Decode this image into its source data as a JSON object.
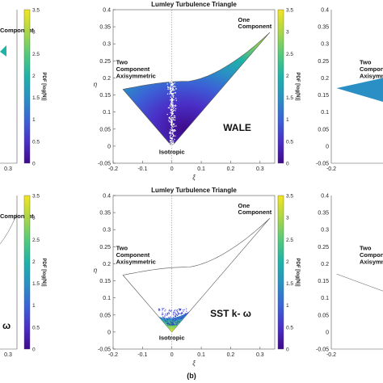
{
  "caption": "(b)",
  "colorbar_label": "PDF [log(N)]",
  "colormap": [
    "#3e0a8a",
    "#4a2fc7",
    "#3b62d6",
    "#2a8fc4",
    "#1fb3a8",
    "#55c97a",
    "#a8d64a",
    "#f3e51f"
  ],
  "annotation_color": "#111111",
  "chart_data": [
    {
      "type": "scatter",
      "panel": "top-left (cropped)",
      "title": "",
      "xlabel": "",
      "ylabel": "",
      "xticks": [
        "0.3"
      ],
      "annotations": [
        "Component"
      ],
      "label": "",
      "cbar_ticks": [
        "0",
        "0.5",
        "1",
        "1.5",
        "2",
        "2.5",
        "3",
        "3.5"
      ],
      "cbar_range": [
        0,
        3.5
      ]
    },
    {
      "type": "scatter",
      "panel": "top-center",
      "title": "Lumley Turbulence Triangle",
      "xlabel": "ξ",
      "ylabel": "η",
      "xlim": [
        -0.2,
        0.35
      ],
      "ylim": [
        -0.05,
        0.4
      ],
      "xticks": [
        "-0.2",
        "-0.1",
        "0",
        "0.1",
        "0.2",
        "0.3"
      ],
      "yticks": [
        "-0.05",
        "0",
        "0.05",
        "0.1",
        "0.15",
        "0.2",
        "0.25",
        "0.3",
        "0.35",
        "0.4"
      ],
      "annotations": [
        "Two",
        "Component",
        "Axisymmetric",
        "One",
        "Component",
        "Isotropic"
      ],
      "label": "WALE",
      "cbar_ticks": [
        "0",
        "0.5",
        "1",
        "1.5",
        "2",
        "2.5",
        "3",
        "3.5"
      ],
      "cbar_range": [
        0,
        3.5
      ],
      "fill": "full",
      "boundary": {
        "left_vertex": [
          -0.1667,
          0.1667
        ],
        "origin": [
          0,
          0
        ],
        "right_vertex": [
          0.3333,
          0.3333
        ]
      }
    },
    {
      "type": "scatter",
      "panel": "top-right (cropped)",
      "title": "",
      "xlabel": "",
      "ylabel": "",
      "xlim": [
        -0.2,
        0.35
      ],
      "ylim": [
        -0.05,
        0.4
      ],
      "xticks": [
        "-0.2"
      ],
      "yticks": [
        "-0.05",
        "0",
        "0.05",
        "0.1",
        "0.15",
        "0.2",
        "0.25",
        "0.3",
        "0.35",
        "0.4"
      ],
      "annotations": [
        "Two",
        "Component",
        "Axisymme"
      ],
      "label": ""
    },
    {
      "type": "scatter",
      "panel": "bottom-left (cropped)",
      "title": "",
      "xlabel": "",
      "ylabel": "",
      "xticks": [
        "0.3"
      ],
      "annotations": [
        "Component"
      ],
      "label": "ω",
      "cbar_ticks": [
        "0",
        "0.5",
        "1",
        "1.5",
        "2",
        "2.5",
        "3",
        "3.5"
      ],
      "cbar_range": [
        0,
        3.5
      ]
    },
    {
      "type": "scatter",
      "panel": "bottom-center",
      "title": "Lumley Turbulence Triangle",
      "xlabel": "ξ",
      "ylabel": "η",
      "xlim": [
        -0.2,
        0.35
      ],
      "ylim": [
        -0.05,
        0.4
      ],
      "xticks": [
        "-0.2",
        "-0.1",
        "0",
        "0.1",
        "0.2",
        "0.3"
      ],
      "yticks": [
        "-0.05",
        "0",
        "0.05",
        "0.1",
        "0.15",
        "0.2",
        "0.25",
        "0.3",
        "0.35",
        "0.4"
      ],
      "annotations": [
        "Two",
        "Component",
        "Axisymmetric",
        "One",
        "Component",
        "Isotropic"
      ],
      "label": "SST k- ω",
      "cbar_ticks": [
        "0",
        "0.5",
        "1",
        "1.5",
        "2",
        "2.5",
        "3",
        "3.5"
      ],
      "cbar_range": [
        0,
        3.5
      ],
      "fill": "near-origin",
      "boundary": {
        "left_vertex": [
          -0.1667,
          0.1667
        ],
        "origin": [
          0,
          0
        ],
        "right_vertex": [
          0.3333,
          0.3333
        ]
      }
    },
    {
      "type": "scatter",
      "panel": "bottom-right (cropped)",
      "title": "",
      "xlabel": "",
      "ylabel": "",
      "xlim": [
        -0.2,
        0.35
      ],
      "ylim": [
        -0.05,
        0.4
      ],
      "xticks": [
        "-0.2"
      ],
      "yticks": [
        "-0.05",
        "0",
        "0.05",
        "0.1",
        "0.15",
        "0.2",
        "0.25",
        "0.3",
        "0.35",
        "0.4"
      ],
      "annotations": [
        "Two",
        "Component",
        "Axisymme"
      ],
      "label": ""
    }
  ]
}
